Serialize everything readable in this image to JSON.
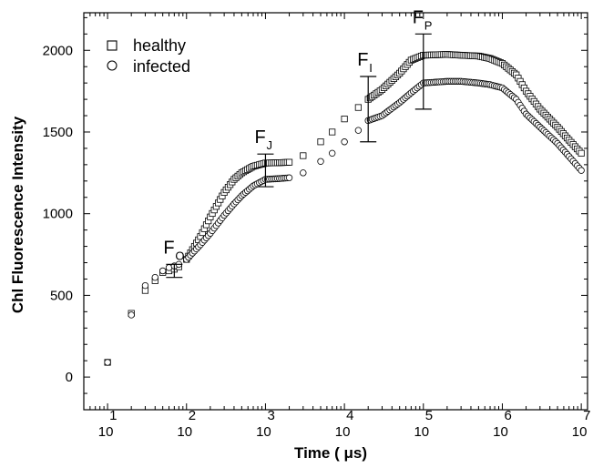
{
  "chart_data": {
    "type": "scatter",
    "xlabel": "Time ( μs)",
    "ylabel": "Chl Fluorescence Intensity",
    "x_scale": "log",
    "xlim": [
      5,
      12000000
    ],
    "ylim": [
      -200,
      2230
    ],
    "x_tick_labels": [
      {
        "base": "10",
        "exp": "1"
      },
      {
        "base": "10",
        "exp": "2"
      },
      {
        "base": "10",
        "exp": "3"
      },
      {
        "base": "10",
        "exp": "4"
      },
      {
        "base": "10",
        "exp": "5"
      },
      {
        "base": "10",
        "exp": "6"
      },
      {
        "base": "10",
        "exp": "7"
      }
    ],
    "y_ticks": [
      "0",
      "500",
      "1000",
      "1500",
      "2000"
    ],
    "grid": false,
    "legend_position": "top-left",
    "series": [
      {
        "name": "healthy",
        "marker": "square",
        "x": [
          10,
          20,
          30,
          40,
          50,
          60,
          70,
          80,
          100,
          150,
          200,
          300,
          400,
          500,
          700,
          1000,
          1500,
          2000,
          3000,
          5000,
          7000,
          10000,
          15000,
          20000,
          30000,
          50000,
          70000,
          100000,
          200000,
          300000,
          500000,
          700000,
          1000000,
          1500000,
          2000000,
          3000000,
          5000000,
          7000000,
          10000000
        ],
        "values": [
          90,
          390,
          530,
          590,
          640,
          650,
          660,
          675,
          720,
          860,
          980,
          1130,
          1210,
          1250,
          1290,
          1310,
          1312,
          1315,
          1355,
          1440,
          1500,
          1580,
          1650,
          1700,
          1760,
          1860,
          1940,
          1970,
          1975,
          1970,
          1965,
          1950,
          1920,
          1850,
          1750,
          1640,
          1530,
          1450,
          1370
        ]
      },
      {
        "name": "infected",
        "marker": "circle",
        "x": [
          10,
          20,
          30,
          40,
          50,
          60,
          70,
          80,
          100,
          150,
          200,
          300,
          400,
          500,
          700,
          1000,
          1500,
          2000,
          3000,
          5000,
          7000,
          10000,
          15000,
          20000,
          30000,
          50000,
          70000,
          100000,
          200000,
          300000,
          500000,
          700000,
          1000000,
          1500000,
          2000000,
          3000000,
          5000000,
          7000000,
          10000000
        ],
        "values": [
          90,
          380,
          560,
          610,
          650,
          670,
          680,
          690,
          720,
          810,
          880,
          990,
          1060,
          1110,
          1170,
          1210,
          1215,
          1220,
          1250,
          1320,
          1370,
          1440,
          1510,
          1570,
          1600,
          1680,
          1740,
          1800,
          1810,
          1810,
          1800,
          1790,
          1770,
          1700,
          1610,
          1530,
          1430,
          1350,
          1265
        ]
      }
    ],
    "annotations": [
      {
        "base": "F",
        "sub": "O",
        "x": 70,
        "y": 650,
        "err": 40
      },
      {
        "base": "F",
        "sub": "J",
        "x": 1000,
        "y": 1265,
        "err": 100
      },
      {
        "base": "F",
        "sub": "I",
        "x": 20000,
        "y": 1640,
        "err": 200
      },
      {
        "base": "F",
        "sub": "P",
        "x": 100000,
        "y": 1870,
        "err": 230
      }
    ]
  }
}
